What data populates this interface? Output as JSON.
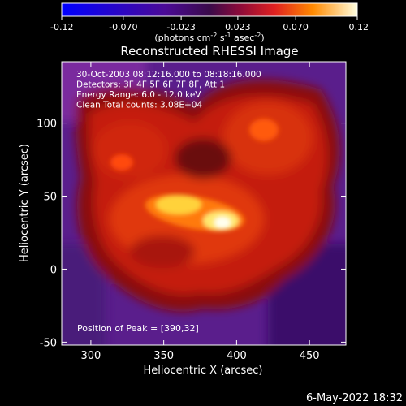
{
  "chart_data": {
    "type": "heatmap",
    "title": "Reconstructed RHESSI Image",
    "xlabel": "Heliocentric X (arcsec)",
    "ylabel": "Heliocentric Y (arcsec)",
    "xlim": [
      280,
      475
    ],
    "ylim": [
      -52,
      142
    ],
    "x_ticks": [
      300,
      350,
      400,
      450
    ],
    "y_ticks": [
      -50,
      0,
      50,
      100
    ],
    "colorbar": {
      "range": [
        -0.12,
        0.12
      ],
      "ticks": [
        "-0.12",
        "-0.070",
        "-0.023",
        "0.023",
        "0.070",
        "0.12"
      ],
      "unit_label": "(photons cm",
      "unit_exp1": "-2",
      "unit_mid": " s",
      "unit_exp2": "-1",
      "unit_mid2": " asec",
      "unit_exp3": "-2",
      "unit_end": ")"
    },
    "info_lines": [
      "30-Oct-2003 08:12:16.000 to 08:18:16.000",
      "Detectors: 3F 4F 5F 6F 7F 8F, Att 1",
      "Energy Range: 6.0 - 12.0 keV",
      "Clean     Total counts: 3.08E+04"
    ],
    "peak_label": "Position of Peak = [390,32]",
    "peak": [
      390,
      32
    ]
  },
  "footer": {
    "timestamp": "6-May-2022 18:32"
  }
}
